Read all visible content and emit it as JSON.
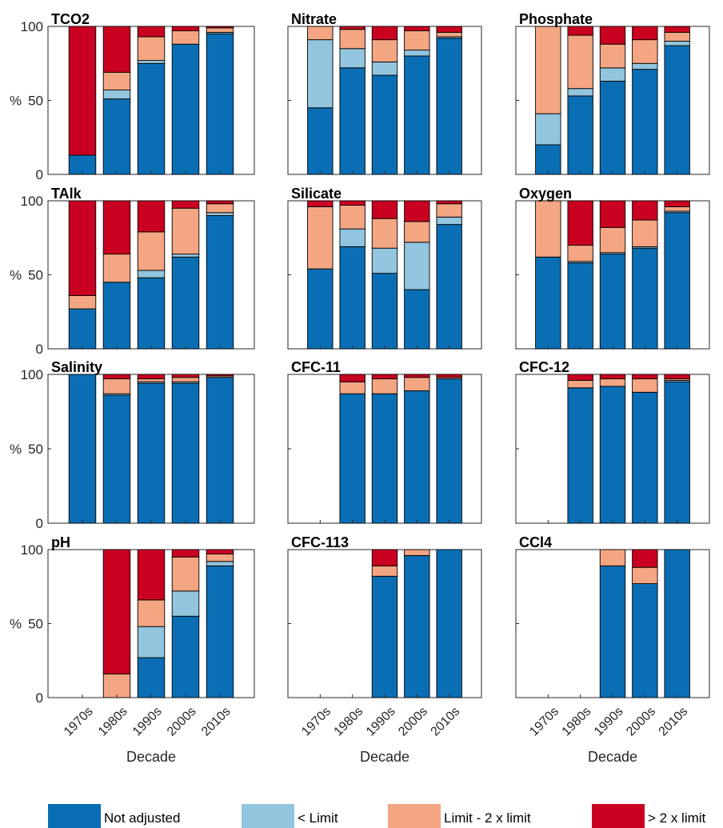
{
  "chart_data": {
    "type": "bar",
    "stacked": true,
    "layout": "4x3 small multiples",
    "categories": [
      "1970s",
      "1980s",
      "1990s",
      "2000s",
      "2010s"
    ],
    "ylim": [
      0,
      100
    ],
    "yticks": [
      0,
      50,
      100
    ],
    "ylabel": "%",
    "xlabel": "Decade",
    "grid": false,
    "legend_position": "bottom",
    "colors": {
      "Not adjusted": "#0a6eb4",
      "< Limit": "#92c5de",
      "Limit - 2 x limit": "#f4a582",
      "> 2 x limit": "#ca0020"
    },
    "legend": [
      "Not adjusted",
      "< Limit",
      "Limit - 2 x limit",
      "> 2 x limit"
    ],
    "panels": [
      {
        "title": "TCO2",
        "series": [
          {
            "name": "Not adjusted",
            "values": [
              13,
              51,
              75,
              88,
              95
            ]
          },
          {
            "name": "< Limit",
            "values": [
              0,
              6,
              2,
              0,
              1
            ]
          },
          {
            "name": "Limit - 2 x limit",
            "values": [
              0,
              12,
              16,
              9,
              3
            ]
          },
          {
            "name": "> 2 x limit",
            "values": [
              87,
              31,
              7,
              3,
              1
            ]
          }
        ]
      },
      {
        "title": "Nitrate",
        "series": [
          {
            "name": "Not adjusted",
            "values": [
              45,
              72,
              67,
              80,
              92
            ]
          },
          {
            "name": "< Limit",
            "values": [
              46,
              13,
              9,
              4,
              1
            ]
          },
          {
            "name": "Limit - 2 x limit",
            "values": [
              9,
              13,
              15,
              13,
              3
            ]
          },
          {
            "name": "> 2 x limit",
            "values": [
              0,
              2,
              9,
              3,
              4
            ]
          }
        ]
      },
      {
        "title": "Phosphate",
        "series": [
          {
            "name": "Not adjusted",
            "values": [
              20,
              53,
              63,
              71,
              87
            ]
          },
          {
            "name": "< Limit",
            "values": [
              21,
              5,
              9,
              4,
              3
            ]
          },
          {
            "name": "Limit - 2 x limit",
            "values": [
              59,
              36,
              16,
              16,
              6
            ]
          },
          {
            "name": "> 2 x limit",
            "values": [
              0,
              6,
              12,
              9,
              4
            ]
          }
        ]
      },
      {
        "title": "TAlk",
        "series": [
          {
            "name": "Not adjusted",
            "values": [
              27,
              45,
              48,
              62,
              90
            ]
          },
          {
            "name": "< Limit",
            "values": [
              0,
              0,
              5,
              2,
              2
            ]
          },
          {
            "name": "Limit - 2 x limit",
            "values": [
              9,
              19,
              26,
              31,
              6
            ]
          },
          {
            "name": "> 2 x limit",
            "values": [
              64,
              36,
              21,
              5,
              2
            ]
          }
        ]
      },
      {
        "title": "Silicate",
        "series": [
          {
            "name": "Not adjusted",
            "values": [
              54,
              69,
              51,
              40,
              84
            ]
          },
          {
            "name": "< Limit",
            "values": [
              0,
              12,
              17,
              32,
              5
            ]
          },
          {
            "name": "Limit - 2 x limit",
            "values": [
              42,
              16,
              20,
              14,
              9
            ]
          },
          {
            "name": "> 2 x limit",
            "values": [
              4,
              3,
              12,
              14,
              2
            ]
          }
        ]
      },
      {
        "title": "Oxygen",
        "series": [
          {
            "name": "Not adjusted",
            "values": [
              62,
              58,
              64,
              68,
              92
            ]
          },
          {
            "name": "< Limit",
            "values": [
              0,
              1,
              1,
              1,
              1
            ]
          },
          {
            "name": "Limit - 2 x limit",
            "values": [
              38,
              11,
              17,
              18,
              3
            ]
          },
          {
            "name": "> 2 x limit",
            "values": [
              0,
              30,
              18,
              13,
              4
            ]
          }
        ]
      },
      {
        "title": "Salinity",
        "series": [
          {
            "name": "Not adjusted",
            "values": [
              100,
              86,
              94,
              94,
              98
            ]
          },
          {
            "name": "< Limit",
            "values": [
              0,
              1,
              1,
              1,
              0
            ]
          },
          {
            "name": "Limit - 2 x limit",
            "values": [
              0,
              10,
              2,
              3,
              1
            ]
          },
          {
            "name": "> 2 x limit",
            "values": [
              0,
              3,
              3,
              2,
              1
            ]
          }
        ]
      },
      {
        "title": "CFC-11",
        "series": [
          {
            "name": "Not adjusted",
            "values": [
              null,
              87,
              87,
              89,
              97
            ]
          },
          {
            "name": "< Limit",
            "values": [
              null,
              0,
              0,
              0,
              0
            ]
          },
          {
            "name": "Limit - 2 x limit",
            "values": [
              null,
              8,
              10,
              9,
              1
            ]
          },
          {
            "name": "> 2 x limit",
            "values": [
              null,
              5,
              3,
              2,
              2
            ]
          }
        ]
      },
      {
        "title": "CFC-12",
        "series": [
          {
            "name": "Not adjusted",
            "values": [
              null,
              91,
              92,
              88,
              95
            ]
          },
          {
            "name": "< Limit",
            "values": [
              null,
              0,
              0,
              0,
              1
            ]
          },
          {
            "name": "Limit - 2 x limit",
            "values": [
              null,
              5,
              5,
              9,
              1
            ]
          },
          {
            "name": "> 2 x limit",
            "values": [
              null,
              4,
              3,
              3,
              3
            ]
          }
        ]
      },
      {
        "title": "pH",
        "series": [
          {
            "name": "Not adjusted",
            "values": [
              null,
              0,
              27,
              55,
              89
            ]
          },
          {
            "name": "< Limit",
            "values": [
              null,
              0,
              21,
              17,
              3
            ]
          },
          {
            "name": "Limit - 2 x limit",
            "values": [
              null,
              16,
              18,
              23,
              5
            ]
          },
          {
            "name": "> 2 x limit",
            "values": [
              null,
              84,
              34,
              5,
              3
            ]
          }
        ]
      },
      {
        "title": "CFC-113",
        "series": [
          {
            "name": "Not adjusted",
            "values": [
              null,
              null,
              82,
              96,
              100
            ]
          },
          {
            "name": "< Limit",
            "values": [
              null,
              null,
              0,
              0,
              0
            ]
          },
          {
            "name": "Limit - 2 x limit",
            "values": [
              null,
              null,
              7,
              4,
              0
            ]
          },
          {
            "name": "> 2 x limit",
            "values": [
              null,
              null,
              11,
              0,
              0
            ]
          }
        ]
      },
      {
        "title": "CCl4",
        "series": [
          {
            "name": "Not adjusted",
            "values": [
              null,
              null,
              89,
              77,
              100
            ]
          },
          {
            "name": "< Limit",
            "values": [
              null,
              null,
              0,
              0,
              0
            ]
          },
          {
            "name": "Limit - 2 x limit",
            "values": [
              null,
              null,
              11,
              11,
              0
            ]
          },
          {
            "name": "> 2 x limit",
            "values": [
              null,
              null,
              0,
              12,
              0
            ]
          }
        ]
      }
    ]
  }
}
